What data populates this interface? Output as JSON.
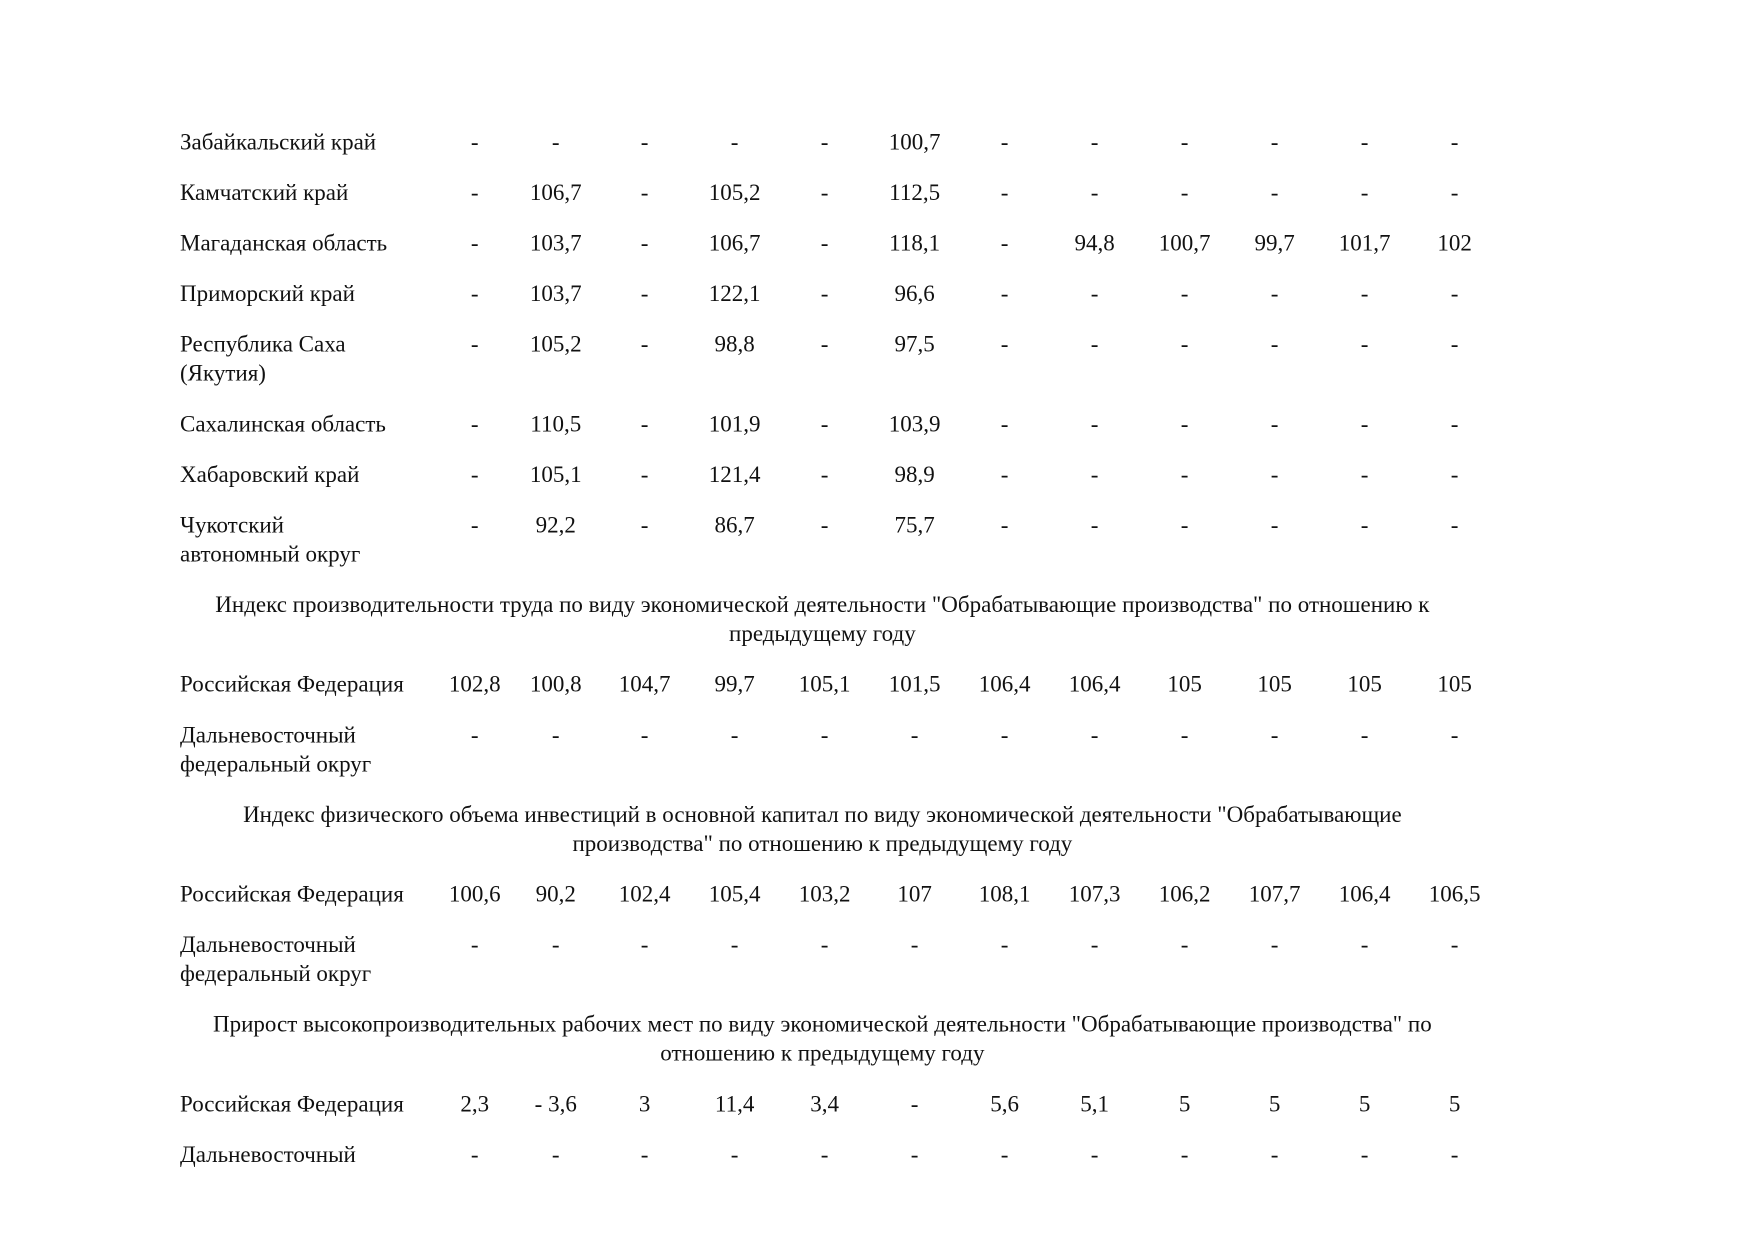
{
  "table": {
    "sections": [
      {
        "rows": [
          {
            "label": [
              "Забайкальский край"
            ],
            "cells": [
              "-",
              "-",
              "-",
              "-",
              "-",
              "100,7",
              "-",
              "-",
              "-",
              "-",
              "-",
              "-"
            ]
          },
          {
            "label": [
              "Камчатский край"
            ],
            "cells": [
              "-",
              "106,7",
              "-",
              "105,2",
              "-",
              "112,5",
              "-",
              "-",
              "-",
              "-",
              "-",
              "-"
            ]
          },
          {
            "label": [
              "Магаданская область"
            ],
            "cells": [
              "-",
              "103,7",
              "-",
              "106,7",
              "-",
              "118,1",
              "-",
              "94,8",
              "100,7",
              "99,7",
              "101,7",
              "102"
            ]
          },
          {
            "label": [
              "Приморский край"
            ],
            "cells": [
              "-",
              "103,7",
              "-",
              "122,1",
              "-",
              "96,6",
              "-",
              "-",
              "-",
              "-",
              "-",
              "-"
            ]
          },
          {
            "label": [
              "Республика Саха",
              "(Якутия)"
            ],
            "cells": [
              "-",
              "105,2",
              "-",
              "98,8",
              "-",
              "97,5",
              "-",
              "-",
              "-",
              "-",
              "-",
              "-"
            ]
          },
          {
            "label": [
              "Сахалинская область"
            ],
            "cells": [
              "-",
              "110,5",
              "-",
              "101,9",
              "-",
              "103,9",
              "-",
              "-",
              "-",
              "-",
              "-",
              "-"
            ]
          },
          {
            "label": [
              "Хабаровский край"
            ],
            "cells": [
              "-",
              "105,1",
              "-",
              "121,4",
              "-",
              "98,9",
              "-",
              "-",
              "-",
              "-",
              "-",
              "-"
            ]
          },
          {
            "label": [
              "Чукотский",
              "автономный округ"
            ],
            "cells": [
              "-",
              "92,2",
              "-",
              "86,7",
              "-",
              "75,7",
              "-",
              "-",
              "-",
              "-",
              "-",
              "-"
            ]
          }
        ]
      },
      {
        "heading": [
          "Индекс производительности труда по виду экономической деятельности \"Обрабатывающие производства\" по отношению к",
          "предыдущему году"
        ],
        "rows": [
          {
            "label": [
              "Российская Федерация"
            ],
            "cells": [
              "102,8",
              "100,8",
              "104,7",
              "99,7",
              "105,1",
              "101,5",
              "106,4",
              "106,4",
              "105",
              "105",
              "105",
              "105"
            ]
          },
          {
            "label": [
              "Дальневосточный",
              "федеральный округ"
            ],
            "cells": [
              "-",
              "-",
              "-",
              "-",
              "-",
              "-",
              "-",
              "-",
              "-",
              "-",
              "-",
              "-"
            ]
          }
        ]
      },
      {
        "heading": [
          "Индекс физического объема инвестиций в основной капитал по виду экономической деятельности \"Обрабатывающие",
          "производства\" по отношению к предыдущему году"
        ],
        "rows": [
          {
            "label": [
              "Российская Федерация"
            ],
            "cells": [
              "100,6",
              "90,2",
              "102,4",
              "105,4",
              "103,2",
              "107",
              "108,1",
              "107,3",
              "106,2",
              "107,7",
              "106,4",
              "106,5"
            ]
          },
          {
            "label": [
              "Дальневосточный",
              "федеральный округ"
            ],
            "cells": [
              "-",
              "-",
              "-",
              "-",
              "-",
              "-",
              "-",
              "-",
              "-",
              "-",
              "-",
              "-"
            ]
          }
        ]
      },
      {
        "heading": [
          "Прирост высокопроизводительных рабочих мест по виду экономической деятельности \"Обрабатывающие производства\" по",
          "отношению к предыдущему году"
        ],
        "rows": [
          {
            "label": [
              "Российская Федерация"
            ],
            "cells": [
              "2,3",
              "- 3,6",
              "3",
              "11,4",
              "3,4",
              "-",
              "5,6",
              "5,1",
              "5",
              "5",
              "5",
              "5"
            ]
          },
          {
            "label": [
              "Дальневосточный"
            ],
            "cells": [
              "-",
              "-",
              "-",
              "-",
              "-",
              "-",
              "-",
              "-",
              "-",
              "-",
              "-",
              "-"
            ]
          }
        ]
      }
    ]
  }
}
